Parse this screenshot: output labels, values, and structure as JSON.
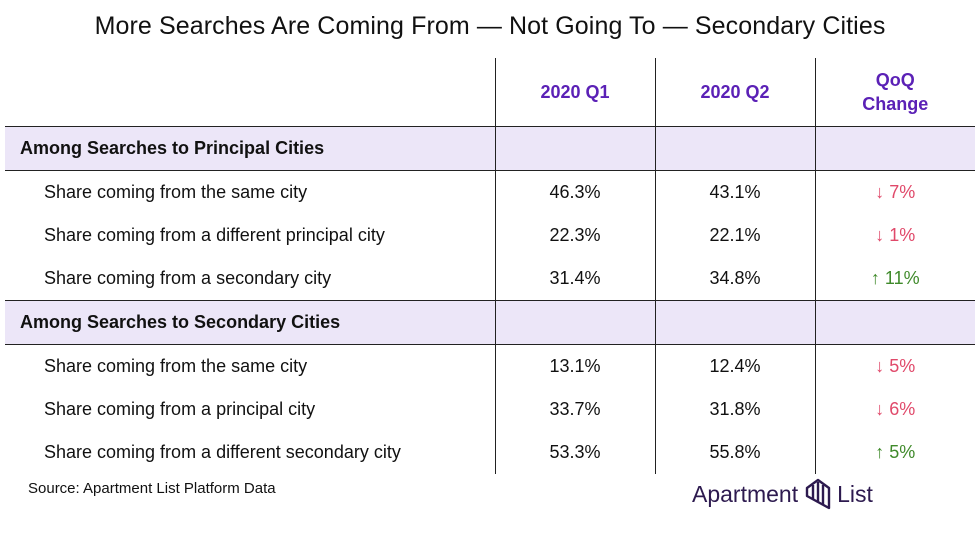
{
  "chart_data": {
    "type": "table",
    "title": "More Searches Are Coming From — Not Going To — Secondary Cities",
    "columns": [
      "2020 Q1",
      "2020 Q2",
      "QoQ Change"
    ],
    "sections": [
      {
        "heading": "Among Searches to Principal Cities",
        "rows": [
          {
            "label": "Share coming from the same city",
            "q1": "46.3%",
            "q2": "43.1%",
            "change": "↓ 7%",
            "direction": "down"
          },
          {
            "label": "Share coming from a different principal city",
            "q1": "22.3%",
            "q2": "22.1%",
            "change": "↓ 1%",
            "direction": "down"
          },
          {
            "label": "Share coming from a secondary city",
            "q1": "31.4%",
            "q2": "34.8%",
            "change": "↑ 11%",
            "direction": "up"
          }
        ]
      },
      {
        "heading": "Among Searches to Secondary Cities",
        "rows": [
          {
            "label": "Share coming from the same city",
            "q1": "13.1%",
            "q2": "12.4%",
            "change": "↓ 5%",
            "direction": "down"
          },
          {
            "label": "Share coming from a principal city",
            "q1": "33.7%",
            "q2": "31.8%",
            "change": "↓ 6%",
            "direction": "down"
          },
          {
            "label": "Share coming from a different secondary city",
            "q1": "53.3%",
            "q2": "55.8%",
            "change": "↑ 5%",
            "direction": "up"
          }
        ]
      }
    ]
  },
  "header": {
    "q1": "2020 Q1",
    "q2": "2020 Q2",
    "change_line1": "QoQ",
    "change_line2": "Change"
  },
  "footer": {
    "source": "Source: Apartment List Platform Data",
    "brand_part1": "Apartment",
    "brand_part2": "List",
    "logo_icon": "apartment-list-logo-icon"
  },
  "colors": {
    "header_text": "#5b21b6",
    "section_bg": "#ece6f8",
    "down": "#e0496a",
    "up": "#3f8a2a",
    "brand": "#2d1a4f"
  }
}
